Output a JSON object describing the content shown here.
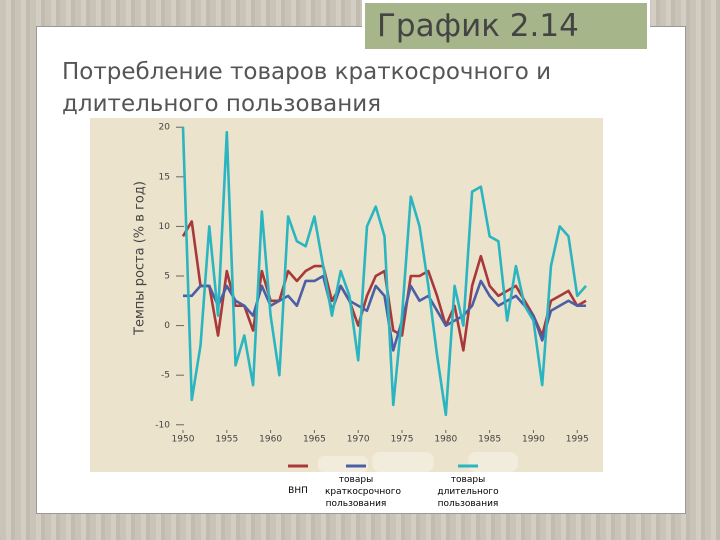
{
  "slide_label": "График 2.14",
  "chart_data": {
    "type": "line",
    "title": "Потребление товаров краткосрочного и длительного пользования",
    "ylabel": "Темпы роста (% в год)",
    "x": [
      1950,
      1951,
      1952,
      1953,
      1954,
      1955,
      1956,
      1957,
      1958,
      1959,
      1960,
      1961,
      1962,
      1963,
      1964,
      1965,
      1966,
      1967,
      1968,
      1969,
      1970,
      1971,
      1972,
      1973,
      1974,
      1975,
      1976,
      1977,
      1978,
      1979,
      1980,
      1981,
      1982,
      1983,
      1984,
      1985,
      1986,
      1987,
      1988,
      1989,
      1990,
      1991,
      1992,
      1993,
      1994,
      1995,
      1996
    ],
    "series": [
      {
        "name": "ВНП",
        "color": "#a8393a",
        "values": [
          9,
          10.5,
          4,
          4,
          -1,
          5.5,
          2,
          2,
          -0.5,
          5.5,
          2.5,
          2.5,
          5.5,
          4.5,
          5.5,
          6,
          6,
          2.5,
          4,
          2.5,
          0,
          3,
          5,
          5.5,
          -0.5,
          -1,
          5,
          5,
          5.5,
          3,
          0,
          2,
          -2.5,
          4,
          7,
          4,
          3,
          3.5,
          4,
          2.5,
          1,
          -1,
          2.5,
          3,
          3.5,
          2,
          2.5
        ]
      },
      {
        "name": "товары краткосрочного пользования",
        "color": "#4a5fa5",
        "values": [
          3,
          3,
          4,
          4,
          2,
          4,
          2.5,
          2,
          1,
          4,
          2,
          2.5,
          3,
          2,
          4.5,
          4.5,
          5,
          1.5,
          4,
          2.5,
          2,
          1.5,
          4,
          3,
          -2.5,
          0.5,
          4,
          2.5,
          3,
          1.5,
          0,
          0.5,
          1,
          2,
          4.5,
          3,
          2,
          2.5,
          3,
          2,
          1,
          -1.5,
          1.5,
          2,
          2.5,
          2,
          2
        ]
      },
      {
        "name": "товары длительного пользования",
        "color": "#2bb5c0",
        "values": [
          20,
          -7.5,
          -2,
          10,
          1,
          19.5,
          -4,
          -1,
          -6,
          11.5,
          1,
          -5,
          11,
          8.5,
          8,
          11,
          6,
          1,
          5.5,
          3,
          -3.5,
          10,
          12,
          9,
          -8,
          1,
          13,
          10,
          4,
          -3,
          -9,
          4,
          0,
          13.5,
          14,
          9,
          8.5,
          0.5,
          6,
          2,
          0.5,
          -6,
          6,
          10,
          9,
          3,
          4
        ]
      }
    ],
    "xlim": [
      1950,
      1996
    ],
    "xticks": [
      1950,
      1955,
      1960,
      1965,
      1970,
      1975,
      1980,
      1985,
      1990,
      1995
    ],
    "ylim": [
      -11,
      21
    ],
    "yticks": [
      -10,
      -5,
      0,
      5,
      10,
      15,
      20
    ],
    "grid": false
  }
}
